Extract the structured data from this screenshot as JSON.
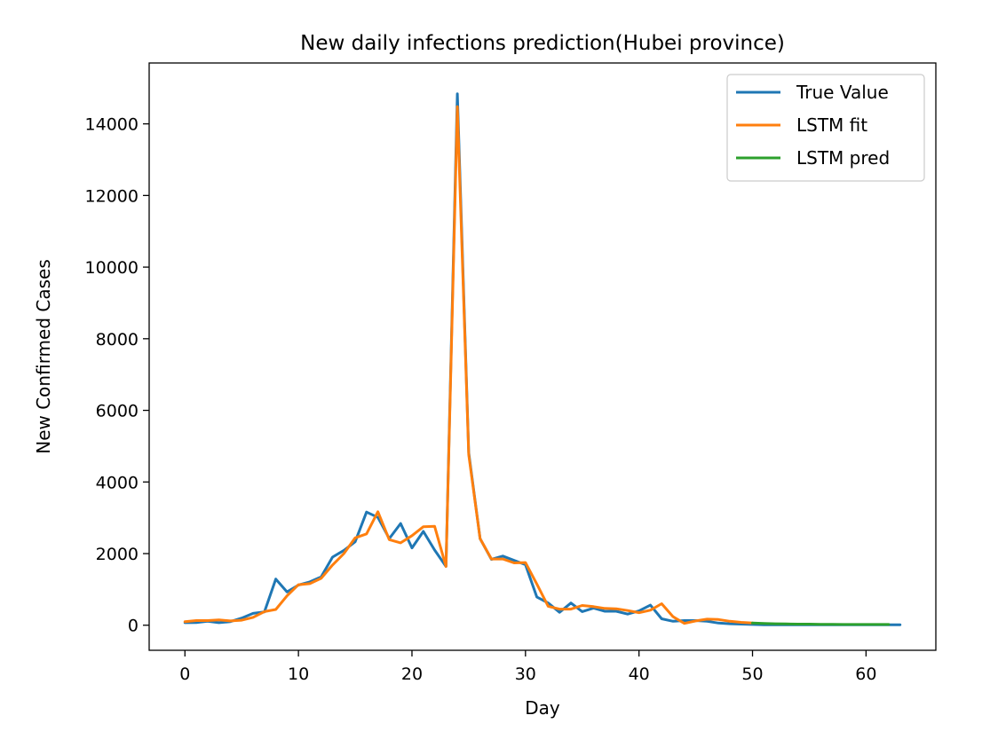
{
  "chart_data": {
    "type": "line",
    "title": "New daily infections prediction(Hubei province)",
    "xlabel": "Day",
    "ylabel": "New Confirmed Cases",
    "xlim": [
      -3.15,
      66.15
    ],
    "ylim": [
      -700,
      15700
    ],
    "xticks": [
      0,
      10,
      20,
      30,
      40,
      50,
      60
    ],
    "yticks": [
      0,
      2000,
      4000,
      6000,
      8000,
      10000,
      12000,
      14000
    ],
    "grid": false,
    "legend_position": "top-right",
    "series": [
      {
        "name": "True Value",
        "color": "#1f77b4",
        "x": [
          0,
          1,
          2,
          3,
          4,
          5,
          6,
          7,
          8,
          9,
          10,
          11,
          12,
          13,
          14,
          15,
          16,
          17,
          18,
          19,
          20,
          21,
          22,
          23,
          24,
          25,
          26,
          27,
          28,
          29,
          30,
          31,
          32,
          33,
          34,
          35,
          36,
          37,
          38,
          39,
          40,
          41,
          42,
          43,
          44,
          45,
          46,
          47,
          48,
          49,
          50,
          51,
          52,
          53,
          54,
          55,
          56,
          57,
          58,
          59,
          60,
          61,
          62,
          63
        ],
        "y": [
          70,
          75,
          110,
          70,
          100,
          200,
          330,
          370,
          1290,
          930,
          1120,
          1210,
          1350,
          1900,
          2090,
          2330,
          3160,
          3010,
          2420,
          2840,
          2160,
          2620,
          2100,
          1640,
          14840,
          4820,
          2420,
          1840,
          1930,
          1810,
          1690,
          790,
          620,
          360,
          620,
          380,
          480,
          390,
          390,
          310,
          400,
          560,
          180,
          110,
          130,
          130,
          110,
          60,
          40,
          30,
          20,
          10,
          10,
          10,
          10,
          10,
          10,
          10,
          10,
          10,
          10,
          10,
          10,
          10
        ]
      },
      {
        "name": "LSTM fit",
        "color": "#ff7f0e",
        "x": [
          0,
          1,
          2,
          3,
          4,
          5,
          6,
          7,
          8,
          9,
          10,
          11,
          12,
          13,
          14,
          15,
          16,
          17,
          18,
          19,
          20,
          21,
          22,
          23,
          24,
          25,
          26,
          27,
          28,
          29,
          30,
          31,
          32,
          33,
          34,
          35,
          36,
          37,
          38,
          39,
          40,
          41,
          42,
          43,
          44,
          45,
          46,
          47,
          48,
          49,
          50
        ],
        "y": [
          100,
          130,
          130,
          150,
          120,
          140,
          220,
          380,
          440,
          820,
          1130,
          1160,
          1310,
          1680,
          2000,
          2440,
          2550,
          3170,
          2390,
          2300,
          2500,
          2750,
          2760,
          1640,
          14480,
          4760,
          2420,
          1850,
          1850,
          1740,
          1750,
          1150,
          530,
          450,
          450,
          550,
          520,
          470,
          460,
          410,
          350,
          420,
          600,
          240,
          50,
          120,
          170,
          160,
          110,
          80,
          60
        ]
      },
      {
        "name": "LSTM pred",
        "color": "#2ca02c",
        "x": [
          50,
          51,
          52,
          53,
          54,
          55,
          56,
          57,
          58,
          59,
          60,
          61,
          62
        ],
        "y": [
          60,
          50,
          40,
          35,
          30,
          30,
          25,
          25,
          20,
          20,
          20,
          20,
          20
        ]
      }
    ]
  }
}
